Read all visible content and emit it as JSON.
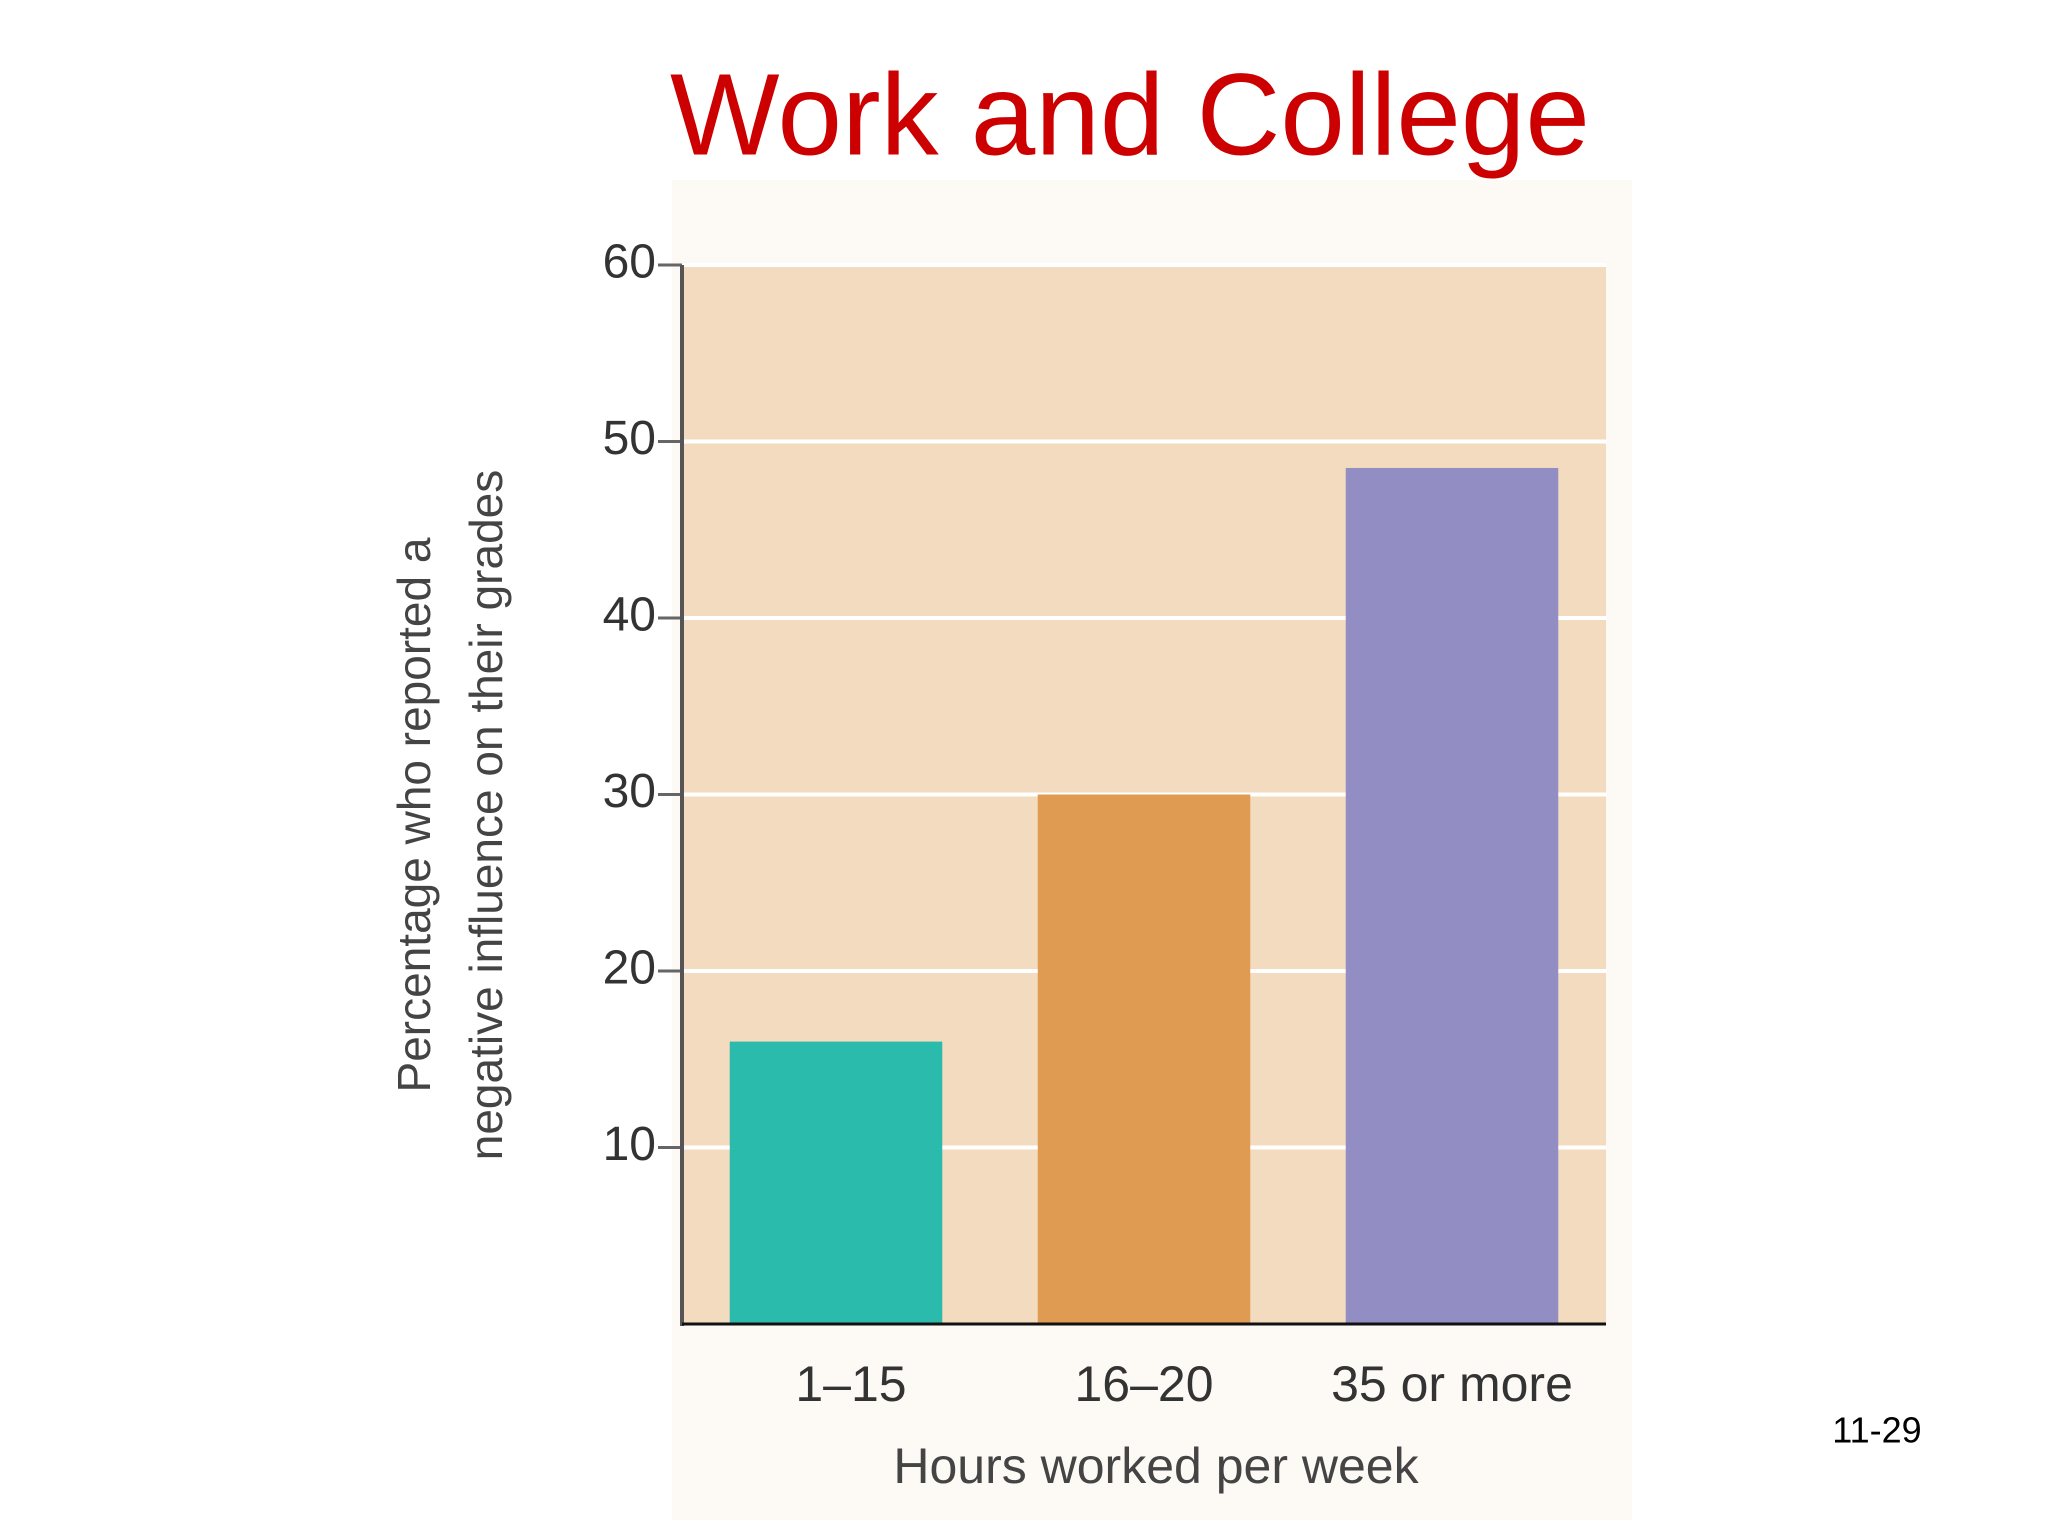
{
  "chart_data": {
    "type": "bar",
    "title": "Work and College",
    "x_label": "Hours worked per week",
    "y_label": [
      "Percentage who reported a",
      "negative influence on their grades"
    ],
    "categories": [
      "1–15",
      "16–20",
      "35 or more"
    ],
    "values": [
      16,
      30,
      48.5
    ],
    "colors": [
      "#2bbbad",
      "#e09b52",
      "#928dc2"
    ],
    "ylim": [
      0,
      60
    ],
    "yticks": [
      10,
      20,
      30,
      40,
      50,
      60
    ],
    "grid": true
  },
  "slide": {
    "page_number": "11-29"
  }
}
